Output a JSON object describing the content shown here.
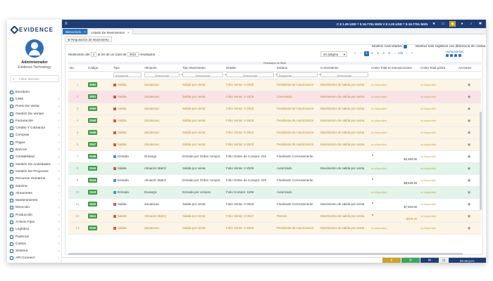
{
  "brand": {
    "name": "EVIDENCE"
  },
  "user": {
    "name": "Administrador",
    "org": "Evidence Technology"
  },
  "sidebar": {
    "search_placeholder": "Filtrar Menúes",
    "items": [
      {
        "label": "Escritorio",
        "chev": false
      },
      {
        "label": "CRM",
        "chev": true
      },
      {
        "label": "Punto De Venta",
        "chev": true
      },
      {
        "label": "Gestión De Ventas",
        "chev": true
      },
      {
        "label": "Facturación",
        "chev": true
      },
      {
        "label": "Crédito Y Cobranza",
        "chev": true
      },
      {
        "label": "Compras",
        "chev": true
      },
      {
        "label": "Pagos",
        "chev": true
      },
      {
        "label": "Bancos",
        "chev": true
      },
      {
        "label": "Contabilidad",
        "chev": true
      },
      {
        "label": "Gestión De Actividades",
        "chev": true
      },
      {
        "label": "Gestión De Proyectos",
        "chev": true
      },
      {
        "label": "Recursos Humanos",
        "chev": true
      },
      {
        "label": "Nómina",
        "chev": true
      },
      {
        "label": "Almacenes",
        "chev": true
      },
      {
        "label": "Mantenimiento",
        "chev": true
      },
      {
        "label": "Dirección",
        "chev": true
      },
      {
        "label": "Producción",
        "chev": true
      },
      {
        "label": "Activos Fijos",
        "chev": true
      },
      {
        "label": "Logística",
        "chev": true
      },
      {
        "label": "Padrinos",
        "chev": true
      },
      {
        "label": "Costos",
        "chev": true
      },
      {
        "label": "Sistema",
        "chev": true
      },
      {
        "label": "API-Connect",
        "chev": true
      }
    ]
  },
  "topbar": {
    "rates": "C $ 1.00 USD = $ 19.7751 MXN   V $ 1.00 USD = $ 19.7751 MXN"
  },
  "tabs": [
    {
      "label": "Bienvenido"
    },
    {
      "label": "Listado De Movimientos"
    }
  ],
  "toolbar": {
    "requisicion_label": "Requisición de Movimiento",
    "showing_prefix": "Mostrando del",
    "showing_from": "1",
    "showing_mid": "al 20 de un total de",
    "showing_total": "2621",
    "showing_suffix": "resultados",
    "mostrar_cancelados": "Mostrar Cancelados",
    "solo_diferencia": "Mostrar solo registros con diferencia de costos",
    "per_page": "20 /página",
    "herramientas": "Herramientas",
    "filter_banner": "Resultados en filtrar"
  },
  "pager": [
    "«",
    "‹",
    "1",
    "2",
    "3",
    "4",
    "5",
    "...",
    "132",
    "›",
    "»"
  ],
  "columns": [
    "No.",
    "Código",
    "Tipo",
    "Almacén",
    "Tipo Movimiento",
    "Detalle",
    "Estatus",
    "Comentarios",
    "Costo Total en transacciones",
    "Costo Total póliza",
    "Acciones"
  ],
  "filters": {
    "busqueda": "Búsqueda",
    "seleccionar": "Seleccionar"
  },
  "rows": [
    {
      "no": "1",
      "code": "2552",
      "tipo": "Salida",
      "tcolor": "red",
      "almacen": "Zacatecas",
      "mov": "Salida por venta",
      "detalle": "Folio Venta: V-2530",
      "estatus": "Pendiente de Autorización",
      "coment": "Movimiento de salida por venta",
      "costo": "no disponible",
      "poliza": "no disponible",
      "amt": "",
      "bg": "y",
      "tone": "gold"
    },
    {
      "no": "2",
      "code": "2551",
      "tipo": "Salida",
      "tcolor": "red",
      "almacen": "Zacatecas",
      "mov": "Salida por venta",
      "detalle": "Folio Venta: V-2529",
      "estatus": "Cancelado",
      "coment": "Movimiento de salida por venta",
      "costo": "no disponible",
      "poliza": "no disponible",
      "amt": "",
      "bg": "r",
      "tone": "gold"
    },
    {
      "no": "3",
      "code": "2550",
      "tipo": "Salida",
      "tcolor": "red",
      "almacen": "Zacatecas",
      "mov": "Salida por venta",
      "detalle": "Folio Venta: V-2526",
      "estatus": "Pendiente de Autorización",
      "coment": "Movimiento de salida por venta",
      "costo": "no disponible",
      "poliza": "no disponible",
      "amt": "",
      "bg": "y",
      "tone": "gold"
    },
    {
      "no": "4",
      "code": "2549",
      "tipo": "Salida",
      "tcolor": "red",
      "almacen": "Zacatecas",
      "mov": "Salida por venta",
      "detalle": "Folio Venta: V-2525",
      "estatus": "Pendiente de Autorización",
      "coment": "Movimiento de salida por venta",
      "costo": "no disponible",
      "poliza": "no disponible",
      "amt": "",
      "bg": "y",
      "tone": "gold"
    },
    {
      "no": "5",
      "code": "2548",
      "tipo": "Salida",
      "tcolor": "red",
      "almacen": "Zacatecas",
      "mov": "Salida por venta",
      "detalle": "Folio Venta: V-2524",
      "estatus": "Pendiente de Autorización",
      "coment": "Movimiento de salida por venta",
      "costo": "no disponible",
      "poliza": "no disponible",
      "amt": "",
      "bg": "y",
      "tone": "gold"
    },
    {
      "no": "6",
      "code": "2547",
      "tipo": "Salida",
      "tcolor": "red",
      "almacen": "Zacatecas",
      "mov": "Salida por venta",
      "detalle": "Folio Venta: V-2523",
      "estatus": "Pendiente de Autorización",
      "coment": "Movimiento de salida por venta",
      "costo": "no disponible",
      "poliza": "no disponible",
      "amt": "",
      "bg": "y",
      "tone": "gold"
    },
    {
      "no": "7",
      "code": "2546",
      "tipo": "Entrada",
      "tcolor": "blue",
      "almacen": "Durango",
      "mov": "Entrada por Orden compra",
      "detalle": "Folio Orden de Compra: 232",
      "estatus": "Finalizado Correctamente",
      "coment": "",
      "costo": "",
      "poliza": "no disponible",
      "amt": "$2,494.00",
      "bg": "w",
      "tone": "dark"
    },
    {
      "no": "8",
      "code": "2545",
      "tipo": "Salida",
      "tcolor": "red",
      "almacen": "Almacén Matriz",
      "mov": "Salida por venta",
      "detalle": "Folio Venta: V-2529",
      "estatus": "Autorizado",
      "coment": "Movimiento de salida por venta",
      "costo": "no disponible",
      "poliza": "no disponible",
      "amt": "",
      "bg": "g",
      "tone": "dark"
    },
    {
      "no": "9",
      "code": "2544",
      "tipo": "Entrada",
      "tcolor": "blue",
      "almacen": "Almacén Matriz",
      "mov": "Entrada por Orden compra",
      "detalle": "Folio Orden de Compra: 229",
      "estatus": "Finalizado Correctamente",
      "coment": "",
      "costo": "",
      "poliza": "no disponible",
      "amt": "$9,529.25",
      "bg": "w",
      "tone": "dark"
    },
    {
      "no": "10",
      "code": "2543",
      "tipo": "Entrada",
      "tcolor": "blue",
      "almacen": "Durango",
      "mov": "Entrada por compra",
      "detalle": "Folio Compra: 1199",
      "estatus": "Autorizado",
      "coment": "",
      "costo": "no disponible",
      "poliza": "no disponible",
      "amt": "",
      "bg": "g",
      "tone": "dark"
    },
    {
      "no": "11",
      "code": "2542",
      "tipo": "Salida",
      "tcolor": "red",
      "almacen": "Zacatecas",
      "mov": "Salida por venta",
      "detalle": "Folio Venta: V-2518",
      "estatus": "Finalizado Correctamente",
      "coment": "Movimiento de salida por venta",
      "costo": "",
      "poliza": "no disponible",
      "amt": "$7,404.00",
      "bg": "w",
      "tone": "dark"
    },
    {
      "no": "12",
      "code": "2541",
      "tipo": "Salida",
      "tcolor": "red",
      "almacen": "Almacén Matriz",
      "mov": "Salida por venta",
      "detalle": "Folio Venta: V-2517",
      "estatus": "Parcial",
      "coment": "Movimiento de salida por venta",
      "costo": "",
      "poliza": "no disponible",
      "amt": "$978.40",
      "bg": "y",
      "tone": "gold"
    },
    {
      "no": "13",
      "code": "2540",
      "tipo": "Salida",
      "tcolor": "red",
      "almacen": "Zacatecas",
      "mov": "Salida por venta",
      "detalle": "Folio Venta: V-2516",
      "estatus": "Pendiente de Autorización",
      "coment": "Movimiento de salida por venta",
      "costo": "no disponible",
      "poliza": "no disponible",
      "amt": "",
      "bg": "y",
      "tone": "gold"
    }
  ],
  "footer": {
    "time": "02:16 p.m."
  }
}
